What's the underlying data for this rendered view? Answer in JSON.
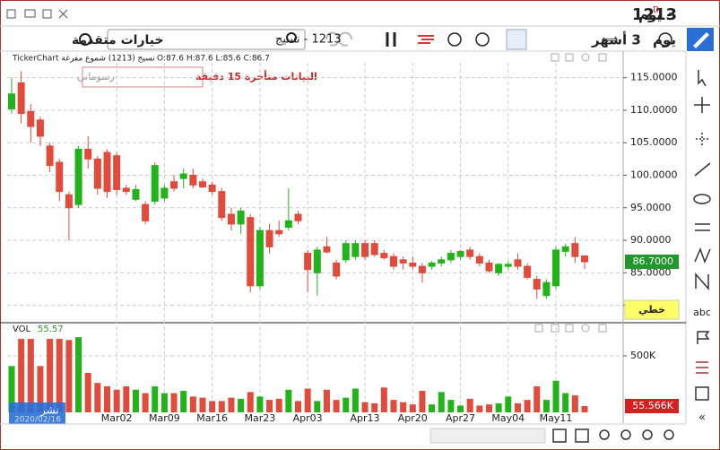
{
  "window": {
    "symbol": "1213",
    "badge": "D",
    "period": "- يوم"
  },
  "toolbar": {
    "advanced": "خيارات متقدمة",
    "search": "1213 - نسيج",
    "range": "3 أشهر",
    "interval": "يوم"
  },
  "chart_notes": {
    "delay": "البيانات متأخرة 15 دقيقة",
    "drawings": "رسوماني",
    "line_style": "خطي",
    "text_tool": "abc",
    "publish": "نشر",
    "date": "2020/02/16"
  },
  "chart_data": [
    {
      "type": "candlestick",
      "title": "TickerChart نسيج (1213) شموع مفرغة",
      "subtitle": "O:87.6 H:87.6 L:85.6 C:86.7",
      "categories": [
        null,
        null,
        null,
        null,
        null,
        null,
        null,
        null,
        null,
        null,
        null,
        "Mar02",
        null,
        null,
        null,
        null,
        "Mar09",
        null,
        null,
        null,
        null,
        "Mar16",
        null,
        null,
        null,
        null,
        "Mar23",
        null,
        null,
        null,
        null,
        "Apr03",
        null,
        null,
        null,
        null,
        null,
        "Apr13",
        null,
        null,
        null,
        null,
        "Apr20",
        null,
        null,
        null,
        null,
        "Apr27",
        null,
        null,
        null,
        null,
        "May04",
        null,
        null,
        null,
        null,
        "May11",
        null,
        null,
        null
      ],
      "open": [
        110.2,
        114.2,
        109.8,
        108.5,
        104.5,
        102,
        97,
        95.5,
        104,
        102.5,
        103.5,
        103,
        98,
        96.3,
        95.5,
        96,
        96.5,
        99,
        99.5,
        100,
        99,
        98.5,
        97.5,
        94,
        92.5,
        93.5,
        83,
        91.5,
        91.5,
        92,
        94,
        88,
        85,
        89,
        86.5,
        87,
        87.5,
        89.5,
        89.5,
        88,
        87.5,
        87,
        86.5,
        86,
        86,
        86.5,
        87,
        87.5,
        88.5,
        87.5,
        86.5,
        85,
        86,
        87,
        86,
        84,
        81.5,
        83,
        88.3,
        89.5,
        87.6
      ],
      "high": [
        115,
        116,
        111,
        109,
        105,
        102.5,
        97.5,
        104.5,
        106,
        103,
        104,
        103.5,
        98.5,
        98.5,
        96,
        102,
        98.5,
        100,
        101,
        101,
        99.5,
        99,
        98,
        95,
        95,
        94,
        92,
        92.5,
        93,
        98,
        94.5,
        88.5,
        89,
        90.5,
        87,
        90,
        90,
        90,
        90,
        88.5,
        88,
        87.5,
        87.5,
        86.5,
        86.8,
        87.5,
        88.5,
        88.5,
        89,
        88,
        87,
        86.5,
        86.8,
        88,
        86.5,
        84.5,
        84,
        89,
        89.5,
        90.5,
        87.6
      ],
      "low": [
        109.5,
        108,
        105,
        104.5,
        100.5,
        96,
        90,
        95,
        101,
        97,
        96.5,
        97,
        97,
        96,
        92.5,
        95.5,
        96,
        97.5,
        98,
        98,
        98,
        97,
        93,
        91.5,
        91,
        82,
        82.5,
        88,
        90.5,
        91.5,
        92.5,
        82,
        81.5,
        88,
        84,
        86.5,
        87,
        87,
        87.5,
        87,
        85.5,
        85.5,
        85.5,
        83.5,
        85.5,
        86,
        86.5,
        87,
        87,
        86,
        85,
        84.5,
        85.5,
        85.5,
        84,
        81,
        81,
        82.5,
        87.5,
        86.5,
        85.6
      ],
      "close": [
        112.5,
        109.5,
        107.5,
        106,
        101.5,
        97.5,
        95,
        104,
        102.5,
        98,
        97.5,
        97.8,
        97.5,
        97.8,
        93,
        101.5,
        98,
        98,
        100.2,
        98.5,
        98.2,
        97.5,
        93.5,
        92.5,
        94.5,
        83,
        91.5,
        89,
        91,
        93,
        93,
        85.5,
        88.5,
        88.2,
        84.5,
        89.5,
        89.5,
        87.5,
        87.8,
        87.3,
        86,
        86.5,
        86,
        85,
        86.5,
        87,
        88,
        88.3,
        87.5,
        86.5,
        85.3,
        86.3,
        86.3,
        86,
        84.3,
        82.5,
        83.5,
        88.5,
        89,
        87.5,
        86.7
      ],
      "up_color": "#22b21a",
      "down_color": "#e04b3c",
      "ylim": [
        77.6,
        117.3
      ],
      "yticks": [
        {
          "value": 80,
          "label": "80.0000"
        },
        {
          "value": 85,
          "label": "85.0000"
        },
        {
          "value": 90,
          "label": "90.0000"
        },
        {
          "value": 95,
          "label": "95.0000"
        },
        {
          "value": 100,
          "label": "100.0000"
        },
        {
          "value": 105,
          "label": "105.0000"
        },
        {
          "value": 110,
          "label": "110.0000"
        },
        {
          "value": 115,
          "label": "115.0000"
        }
      ],
      "current_value": {
        "value": 86.7,
        "label": "86.7000"
      },
      "current_color": "#1f9a2a",
      "grid": true
    },
    {
      "type": "bar",
      "title": "VOL",
      "subtitle": "55.57",
      "values": [
        410,
        650,
        650,
        410,
        650,
        650,
        640,
        665,
        350,
        260,
        230,
        200,
        230,
        200,
        170,
        230,
        170,
        170,
        190,
        140,
        130,
        100,
        100,
        130,
        120,
        180,
        140,
        110,
        120,
        200,
        100,
        210,
        100,
        200,
        110,
        130,
        210,
        90,
        80,
        220,
        110,
        90,
        70,
        190,
        70,
        180,
        110,
        60,
        120,
        60,
        70,
        80,
        140,
        80,
        110,
        230,
        110,
        280,
        170,
        150,
        55.566
      ],
      "ylim": [
        0,
        714
      ],
      "yticks": [
        {
          "value": 500,
          "label": "500K"
        }
      ],
      "current_value": {
        "value": 55.566,
        "label": "55.566K"
      },
      "current_color": "#d42020",
      "grid": true
    }
  ]
}
